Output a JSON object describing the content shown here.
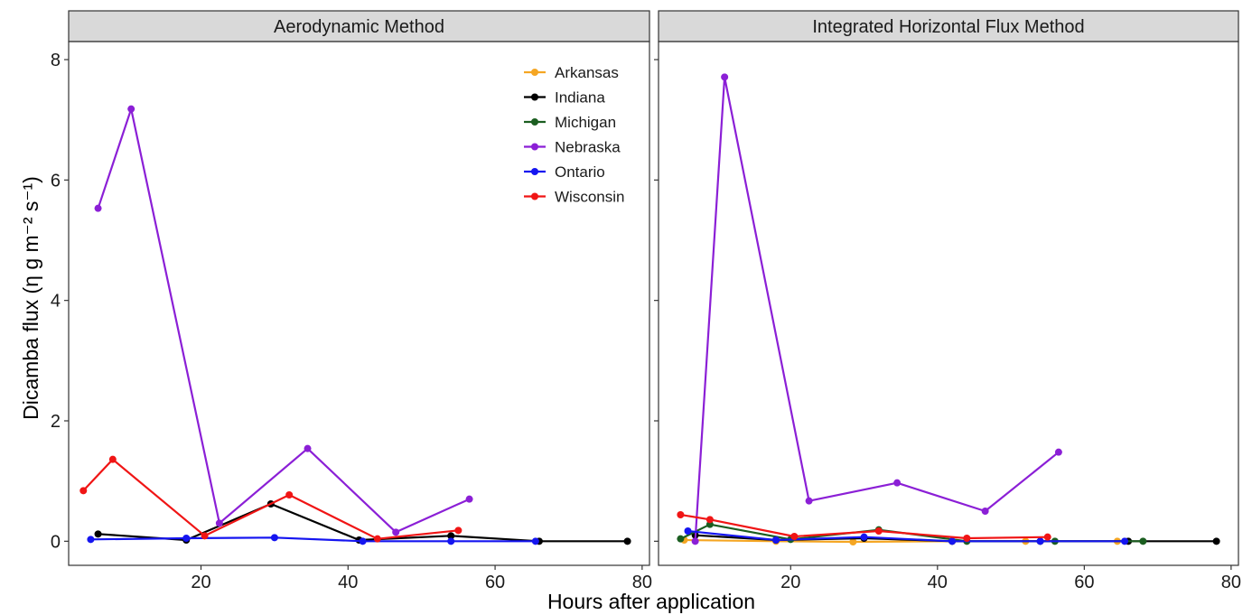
{
  "chart_data": {
    "type": "line",
    "xlabel": "Hours after application",
    "ylabel": "Dicamba flux (η g m⁻² s⁻¹)",
    "xlim": [
      2,
      81
    ],
    "ylim": [
      -0.4,
      8.3
    ],
    "x_ticks": [
      20,
      40,
      60,
      80
    ],
    "y_ticks": [
      0,
      2,
      4,
      6,
      8
    ],
    "grid": false,
    "legend_position": "top-right",
    "series_colors": {
      "Arkansas": "#f5a623",
      "Indiana": "#000000",
      "Michigan": "#1b5e20",
      "Nebraska": "#8b1fd6",
      "Ontario": "#1515f0",
      "Wisconsin": "#f01515"
    },
    "panels": [
      {
        "title": "Aerodynamic Method",
        "series": [
          {
            "name": "Arkansas",
            "x": [],
            "y": []
          },
          {
            "name": "Indiana",
            "x": [
              6,
              18,
              29.5,
              41.5,
              54,
              66,
              78
            ],
            "y": [
              0.12,
              0.02,
              0.62,
              0.02,
              0.09,
              0,
              0
            ]
          },
          {
            "name": "Michigan",
            "x": [],
            "y": []
          },
          {
            "name": "Nebraska",
            "x": [
              6,
              10.5,
              22.5,
              34.5,
              46.5,
              56.5
            ],
            "y": [
              5.53,
              7.18,
              0.3,
              1.54,
              0.15,
              0.7
            ]
          },
          {
            "name": "Ontario",
            "x": [
              5,
              18,
              30,
              42,
              54,
              65.5
            ],
            "y": [
              0.03,
              0.05,
              0.06,
              0,
              0,
              0
            ]
          },
          {
            "name": "Wisconsin",
            "x": [
              4,
              8,
              20.5,
              32,
              44,
              55
            ],
            "y": [
              0.84,
              1.36,
              0.09,
              0.77,
              0.04,
              0.18
            ]
          }
        ]
      },
      {
        "title": "Integrated Horizontal Flux Method",
        "series": [
          {
            "name": "Arkansas",
            "x": [
              5.5,
              18,
              28.5,
              42,
              52,
              64.5
            ],
            "y": [
              0.02,
              0,
              -0.01,
              0,
              0,
              0
            ]
          },
          {
            "name": "Indiana",
            "x": [
              7,
              18,
              30,
              42,
              54,
              66,
              78
            ],
            "y": [
              0.1,
              0.02,
              0.05,
              0,
              0,
              0,
              0
            ]
          },
          {
            "name": "Michigan",
            "x": [
              5,
              9,
              20,
              32,
              44,
              56,
              68
            ],
            "y": [
              0.04,
              0.28,
              0.03,
              0.19,
              0,
              0,
              0
            ]
          },
          {
            "name": "Nebraska",
            "x": [
              7,
              11,
              22.5,
              34.5,
              46.5,
              56.5
            ],
            "y": [
              0,
              7.71,
              0.67,
              0.97,
              0.5,
              1.48
            ]
          },
          {
            "name": "Ontario",
            "x": [
              6,
              18,
              30,
              42,
              54,
              65.5
            ],
            "y": [
              0.17,
              0.02,
              0.07,
              0,
              0,
              0
            ]
          },
          {
            "name": "Wisconsin",
            "x": [
              5,
              9,
              20.5,
              32,
              44,
              55
            ],
            "y": [
              0.44,
              0.36,
              0.08,
              0.17,
              0.05,
              0.07
            ]
          }
        ]
      }
    ]
  }
}
